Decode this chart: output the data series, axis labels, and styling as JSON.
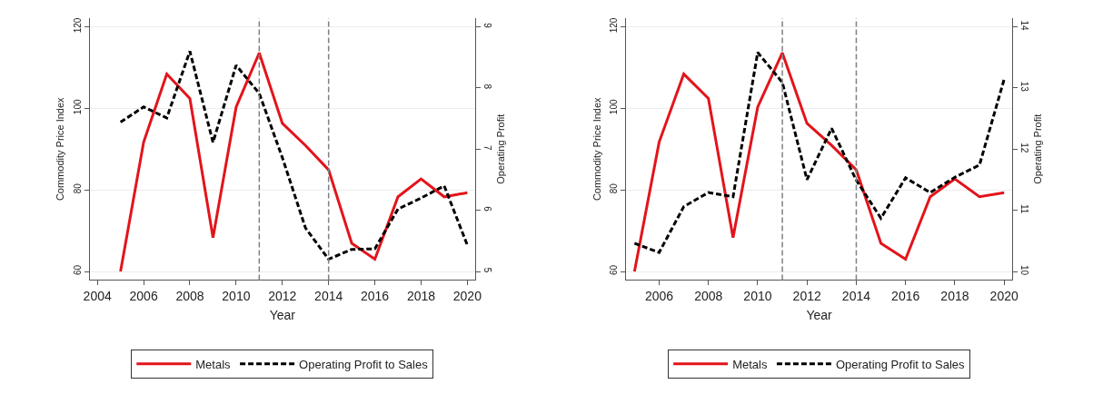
{
  "chart_data": [
    {
      "type": "line",
      "xlabel": "Year",
      "ylabel": "Commodity Price Index",
      "y2label": "Operating Profit",
      "x": [
        2005,
        2006,
        2007,
        2008,
        2009,
        2010,
        2011,
        2012,
        2013,
        2014,
        2015,
        2016,
        2017,
        2018,
        2019,
        2020
      ],
      "series": [
        {
          "name": "Metals",
          "color": "#e3141b",
          "line_style": "solid",
          "values": [
            60,
            91.7,
            108.4,
            102.4,
            68.3,
            100.3,
            113.6,
            96.3,
            90.9,
            84.9,
            66.9,
            63.0,
            78.3,
            82.7,
            78.3,
            79.3
          ]
        },
        {
          "name": "Operating Profit to Sales",
          "color": "#000000",
          "line_style": "dashed",
          "axis": "y2",
          "values": [
            7.44,
            7.69,
            7.51,
            8.6,
            7.11,
            8.37,
            7.91,
            6.86,
            5.71,
            5.2,
            5.36,
            5.37,
            6.02,
            6.2,
            6.4,
            5.43
          ]
        }
      ],
      "xlim": [
        2003.66,
        2020.34
      ],
      "xticks": [
        2004,
        2006,
        2008,
        2010,
        2012,
        2014,
        2016,
        2018,
        2020
      ],
      "ylim": [
        57.9,
        122.1
      ],
      "yticks": [
        60,
        80,
        100,
        120
      ],
      "y2lim": [
        4.86,
        9.14
      ],
      "y2ticks": [
        5,
        6,
        7,
        8,
        9
      ],
      "ref_lines": [
        {
          "axis": "x",
          "value": 2011,
          "color": "#808080",
          "line_style": "dashed"
        },
        {
          "axis": "x",
          "value": 2014,
          "color": "#808080",
          "line_style": "dashed"
        }
      ],
      "grid": "y",
      "legend": "bottom",
      "marker": "none"
    },
    {
      "type": "line",
      "xlabel": "Year",
      "ylabel": "Commodity Price Index",
      "y2label": "Operating Profit",
      "x": [
        2005,
        2006,
        2007,
        2008,
        2009,
        2010,
        2011,
        2012,
        2013,
        2014,
        2015,
        2016,
        2017,
        2018,
        2019,
        2020
      ],
      "series": [
        {
          "name": "Metals",
          "color": "#e3141b",
          "line_style": "solid",
          "values": [
            60,
            91.7,
            108.4,
            102.4,
            68.3,
            100.3,
            113.6,
            96.3,
            90.9,
            84.9,
            66.9,
            63.0,
            78.3,
            82.7,
            78.3,
            79.3
          ]
        },
        {
          "name": "Operating Profit to Sales",
          "color": "#000000",
          "line_style": "dashed",
          "axis": "y2",
          "values": [
            10.46,
            10.31,
            11.06,
            11.29,
            11.22,
            13.58,
            13.09,
            11.5,
            12.34,
            11.49,
            10.87,
            11.53,
            11.29,
            11.54,
            11.74,
            13.14
          ]
        }
      ],
      "xlim": [
        2004.67,
        2020.32
      ],
      "xticks": [
        2006,
        2008,
        2010,
        2012,
        2014,
        2016,
        2018,
        2020
      ],
      "ylim": [
        57.9,
        122.1
      ],
      "yticks": [
        60,
        80,
        100,
        120
      ],
      "y2lim": [
        9.86,
        14.14
      ],
      "y2ticks": [
        10,
        11,
        12,
        13,
        14
      ],
      "ref_lines": [
        {
          "axis": "x",
          "value": 2011,
          "color": "#808080",
          "line_style": "dashed"
        },
        {
          "axis": "x",
          "value": 2014,
          "color": "#808080",
          "line_style": "dashed"
        }
      ],
      "grid": "y",
      "legend": "bottom",
      "marker": "none"
    }
  ]
}
